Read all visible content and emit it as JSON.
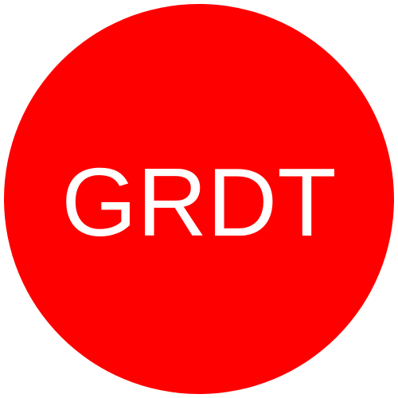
{
  "badge": {
    "text": "GRDT",
    "background_color": "#ff0000",
    "text_color": "#ffffff"
  }
}
